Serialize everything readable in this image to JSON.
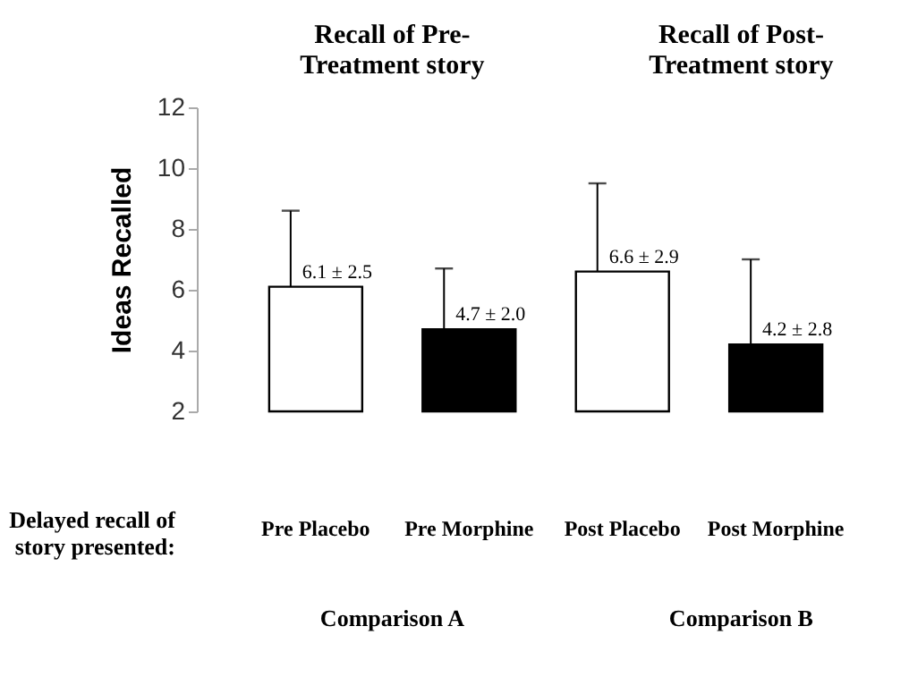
{
  "chart_data": {
    "type": "bar",
    "categories": [
      "Pre Placebo",
      "Pre Morphine",
      "Post Placebo",
      "Post Morphine"
    ],
    "values": [
      6.1,
      4.7,
      6.6,
      4.2
    ],
    "colors": [
      "#ffffff",
      "#000000",
      "#ffffff",
      "#000000"
    ],
    "errors": [
      2.5,
      2.0,
      2.9,
      2.8
    ],
    "value_labels": [
      "6.1 ± 2.5",
      "4.7 ± 2.0",
      "6.6 ± 2.9",
      "4.2 ± 2.8"
    ],
    "ylabel": "Ideas Recalled",
    "ylim": [
      2,
      12
    ],
    "yticks": [
      2,
      4,
      6,
      8,
      10,
      12
    ],
    "annotations": [
      "Recall of Pre-\nTreatment story",
      "Recall of Post-\nTreatment story",
      "Delayed recall of\nstory presented:",
      "Comparison A",
      "Comparison B"
    ],
    "grid": false
  }
}
